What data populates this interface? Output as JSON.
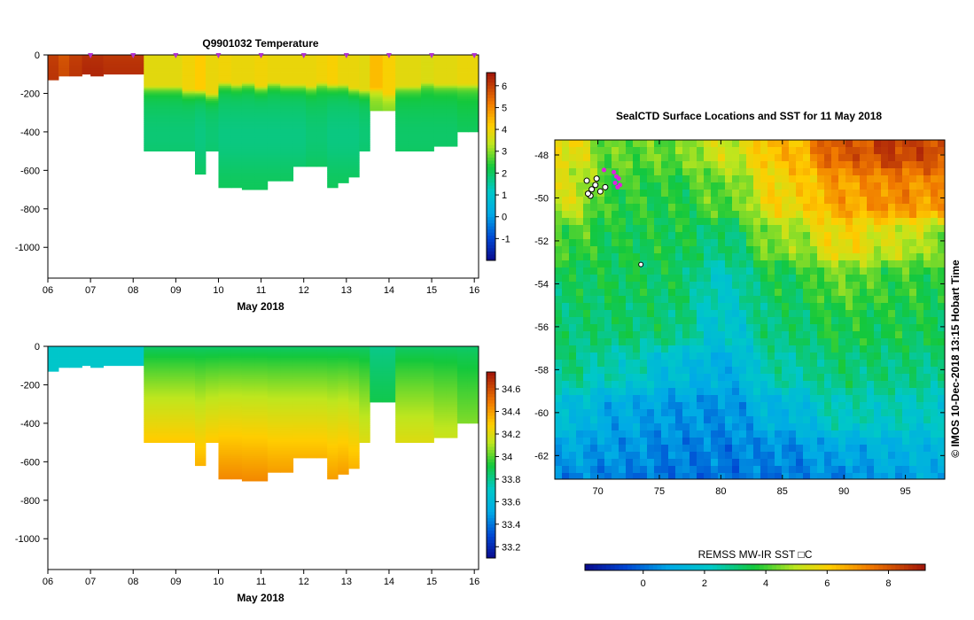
{
  "chart_data": [
    {
      "type": "heatmap",
      "title": "Q9901032  Temperature",
      "xlabel": "May 2018",
      "ylabel": "",
      "x_tick_labels": [
        "06",
        "07",
        "08",
        "09",
        "10",
        "11",
        "12",
        "13",
        "14",
        "15",
        "16"
      ],
      "x_tick_values": [
        6,
        7,
        8,
        9,
        10,
        11,
        12,
        13,
        14,
        15,
        16
      ],
      "xlim": [
        6,
        16.1
      ],
      "y_tick_labels": [
        "0",
        "-200",
        "-400",
        "-600",
        "-800",
        "-1000"
      ],
      "y_tick_values": [
        0,
        -200,
        -400,
        -600,
        -800,
        -1000
      ],
      "ylim": [
        -1160,
        0
      ],
      "colorbar": {
        "ticks": [
          "6",
          "5",
          "4",
          "3",
          "2",
          "1",
          "0",
          "-1"
        ],
        "tick_values": [
          6,
          5,
          4,
          3,
          2,
          1,
          0,
          -1
        ],
        "range": [
          -2.0,
          6.6
        ]
      },
      "profile_times": [
        6.0,
        6.25,
        6.5,
        6.8,
        7.0,
        7.3,
        8.25,
        8.55,
        8.85,
        9.15,
        9.45,
        9.7,
        10.0,
        10.3,
        10.55,
        10.85,
        11.15,
        11.45,
        11.75,
        12.05,
        12.3,
        12.55,
        12.8,
        13.05,
        13.3,
        13.55,
        13.85,
        14.15,
        14.45,
        14.75,
        15.05,
        15.35,
        15.6,
        15.85
      ],
      "profile_max_depths": [
        130,
        110,
        110,
        100,
        110,
        100,
        500,
        500,
        500,
        500,
        620,
        500,
        690,
        690,
        700,
        700,
        655,
        655,
        580,
        580,
        580,
        690,
        665,
        635,
        500,
        290,
        290,
        500,
        500,
        500,
        475,
        475,
        400,
        400
      ],
      "profile_mixed_layer_depths": [
        0,
        0,
        0,
        0,
        0,
        0,
        160,
        160,
        160,
        180,
        180,
        200,
        140,
        150,
        140,
        160,
        140,
        150,
        150,
        160,
        140,
        150,
        150,
        170,
        180,
        170,
        200,
        160,
        160,
        140,
        150,
        150,
        150,
        150
      ],
      "profile_surface_temps": [
        6.0,
        5.7,
        6.0,
        6.2,
        6.2,
        6.1,
        3.8,
        3.8,
        3.8,
        4.0,
        4.2,
        3.9,
        4.0,
        3.9,
        3.9,
        4.0,
        3.9,
        3.9,
        3.9,
        3.9,
        4.0,
        4.1,
        3.9,
        3.9,
        3.8,
        4.4,
        4.1,
        3.8,
        3.8,
        3.7,
        3.8,
        3.8,
        3.9,
        3.9
      ],
      "profile_deep_temps": [
        6.0,
        5.7,
        6.0,
        6.2,
        6.2,
        6.1,
        2.0,
        2.0,
        2.0,
        2.0,
        1.9,
        2.0,
        1.9,
        1.9,
        1.9,
        1.9,
        1.9,
        1.9,
        1.9,
        2.0,
        2.0,
        1.9,
        1.9,
        1.9,
        2.0,
        2.9,
        3.0,
        2.1,
        2.1,
        2.1,
        2.1,
        2.1,
        2.2,
        2.2
      ],
      "surface_markers": [
        7.0,
        8.0,
        9.0,
        10.0,
        11.0,
        12.0,
        13.0,
        14.0,
        15.0,
        16.0
      ]
    },
    {
      "type": "heatmap",
      "title": "",
      "xlabel": "May 2018",
      "ylabel": "",
      "x_tick_labels": [
        "06",
        "07",
        "08",
        "09",
        "10",
        "11",
        "12",
        "13",
        "14",
        "15",
        "16"
      ],
      "x_tick_values": [
        6,
        7,
        8,
        9,
        10,
        11,
        12,
        13,
        14,
        15,
        16
      ],
      "xlim": [
        6,
        16.1
      ],
      "y_tick_labels": [
        "0",
        "-200",
        "-400",
        "-600",
        "-800",
        "-1000"
      ],
      "y_tick_values": [
        0,
        -200,
        -400,
        -600,
        -800,
        -1000
      ],
      "ylim": [
        -1160,
        0
      ],
      "colorbar": {
        "ticks": [
          "34.6",
          "34.4",
          "34.2",
          "34",
          "33.8",
          "33.6",
          "33.4",
          "33.2"
        ],
        "tick_values": [
          34.6,
          34.4,
          34.2,
          34.0,
          33.8,
          33.6,
          33.4,
          33.2
        ],
        "range": [
          33.1,
          34.75
        ]
      },
      "profile_times": [
        6.0,
        6.25,
        6.5,
        6.8,
        7.0,
        7.3,
        8.25,
        8.55,
        8.85,
        9.15,
        9.45,
        9.7,
        10.0,
        10.3,
        10.55,
        10.85,
        11.15,
        11.45,
        11.75,
        12.05,
        12.3,
        12.55,
        12.8,
        13.05,
        13.3,
        13.55,
        13.85,
        14.15,
        14.45,
        14.75,
        15.05,
        15.35,
        15.6,
        15.85
      ],
      "profile_max_depths": [
        130,
        110,
        110,
        100,
        110,
        100,
        500,
        500,
        500,
        500,
        620,
        500,
        690,
        690,
        700,
        700,
        655,
        655,
        580,
        580,
        580,
        690,
        665,
        635,
        500,
        290,
        290,
        500,
        500,
        500,
        475,
        475,
        400,
        400
      ],
      "profile_surface_salinity": [
        33.7,
        33.7,
        33.7,
        33.7,
        33.7,
        33.7,
        33.85,
        33.85,
        33.85,
        33.85,
        33.85,
        33.85,
        33.85,
        33.85,
        33.85,
        33.85,
        33.85,
        33.85,
        33.85,
        33.85,
        33.85,
        33.85,
        33.85,
        33.85,
        33.85,
        33.8,
        33.8,
        33.85,
        33.85,
        33.85,
        33.85,
        33.85,
        33.85,
        33.85
      ],
      "profile_deep_salinity": [
        33.7,
        33.7,
        33.7,
        33.7,
        33.7,
        33.7,
        34.3,
        34.3,
        34.3,
        34.3,
        34.35,
        34.3,
        34.45,
        34.45,
        34.45,
        34.45,
        34.4,
        34.4,
        34.35,
        34.35,
        34.35,
        34.4,
        34.4,
        34.35,
        34.2,
        33.9,
        33.9,
        34.2,
        34.2,
        34.2,
        34.15,
        34.15,
        34.05,
        34.05
      ]
    },
    {
      "type": "heatmap",
      "title": "SealCTD Surface Locations and SST for 11 May 2018",
      "xlabel": "",
      "ylabel": "",
      "x_tick_labels": [
        "70",
        "75",
        "80",
        "85",
        "90",
        "95"
      ],
      "x_tick_values": [
        70,
        75,
        80,
        85,
        90,
        95
      ],
      "xlim": [
        66.5,
        98.2
      ],
      "y_tick_labels": [
        "-48",
        "-50",
        "-52",
        "-54",
        "-56",
        "-58",
        "-60",
        "-62"
      ],
      "y_tick_values": [
        -48,
        -50,
        -52,
        -54,
        -56,
        -58,
        -60,
        -62
      ],
      "ylim": [
        -63.1,
        -47.3
      ],
      "colorbar": {
        "label": "REMSS MW-IR SST □C",
        "ticks": [
          "0",
          "2",
          "4",
          "6",
          "8"
        ],
        "tick_values": [
          0,
          2,
          4,
          6,
          8
        ],
        "range": [
          -1.9,
          9.2
        ],
        "orientation": "horizontal"
      },
      "sst_anchor_points": [
        {
          "lon": 67,
          "lat": -47.5,
          "sst": 5.7
        },
        {
          "lon": 72,
          "lat": -47.5,
          "sst": 4.2
        },
        {
          "lon": 76,
          "lat": -47.5,
          "sst": 4.3
        },
        {
          "lon": 80,
          "lat": -47.5,
          "sst": 5.2
        },
        {
          "lon": 85,
          "lat": -47.5,
          "sst": 6.4
        },
        {
          "lon": 90,
          "lat": -47.5,
          "sst": 8.0
        },
        {
          "lon": 94,
          "lat": -47.5,
          "sst": 8.5
        },
        {
          "lon": 98,
          "lat": -47.5,
          "sst": 8.3
        },
        {
          "lon": 67,
          "lat": -50,
          "sst": 5.3
        },
        {
          "lon": 72,
          "lat": -50,
          "sst": 3.8
        },
        {
          "lon": 76,
          "lat": -50,
          "sst": 3.6
        },
        {
          "lon": 80,
          "lat": -50,
          "sst": 4.2
        },
        {
          "lon": 85,
          "lat": -50,
          "sst": 5.9
        },
        {
          "lon": 90,
          "lat": -50,
          "sst": 6.8
        },
        {
          "lon": 94,
          "lat": -50,
          "sst": 7.2
        },
        {
          "lon": 98,
          "lat": -50,
          "sst": 7.0
        },
        {
          "lon": 67,
          "lat": -52,
          "sst": 4.0
        },
        {
          "lon": 72,
          "lat": -52,
          "sst": 3.5
        },
        {
          "lon": 76,
          "lat": -52,
          "sst": 3.5
        },
        {
          "lon": 80,
          "lat": -52,
          "sst": 3.0
        },
        {
          "lon": 85,
          "lat": -52,
          "sst": 4.6
        },
        {
          "lon": 90,
          "lat": -52,
          "sst": 5.8
        },
        {
          "lon": 94,
          "lat": -52,
          "sst": 5.2
        },
        {
          "lon": 98,
          "lat": -52,
          "sst": 4.6
        },
        {
          "lon": 67,
          "lat": -54,
          "sst": 3.3
        },
        {
          "lon": 72,
          "lat": -54,
          "sst": 3.4
        },
        {
          "lon": 76,
          "lat": -54,
          "sst": 3.3
        },
        {
          "lon": 80,
          "lat": -54,
          "sst": 2.2
        },
        {
          "lon": 85,
          "lat": -54,
          "sst": 3.4
        },
        {
          "lon": 90,
          "lat": -54,
          "sst": 4.2
        },
        {
          "lon": 94,
          "lat": -54,
          "sst": 3.8
        },
        {
          "lon": 98,
          "lat": -54,
          "sst": 3.6
        },
        {
          "lon": 67,
          "lat": -56,
          "sst": 3.1
        },
        {
          "lon": 72,
          "lat": -56,
          "sst": 3.2
        },
        {
          "lon": 76,
          "lat": -56,
          "sst": 3.1
        },
        {
          "lon": 80,
          "lat": -56,
          "sst": 1.9
        },
        {
          "lon": 85,
          "lat": -56,
          "sst": 3.1
        },
        {
          "lon": 90,
          "lat": -56,
          "sst": 3.6
        },
        {
          "lon": 94,
          "lat": -56,
          "sst": 3.5
        },
        {
          "lon": 98,
          "lat": -56,
          "sst": 3.4
        },
        {
          "lon": 67,
          "lat": -58,
          "sst": 3.0
        },
        {
          "lon": 72,
          "lat": -58,
          "sst": 2.4
        },
        {
          "lon": 76,
          "lat": -58,
          "sst": 1.6
        },
        {
          "lon": 80,
          "lat": -58,
          "sst": 1.1
        },
        {
          "lon": 85,
          "lat": -58,
          "sst": 2.6
        },
        {
          "lon": 90,
          "lat": -58,
          "sst": 3.1
        },
        {
          "lon": 94,
          "lat": -58,
          "sst": 3.0
        },
        {
          "lon": 98,
          "lat": -58,
          "sst": 2.9
        },
        {
          "lon": 67,
          "lat": -60,
          "sst": 1.6
        },
        {
          "lon": 72,
          "lat": -60,
          "sst": 0.9
        },
        {
          "lon": 76,
          "lat": -60,
          "sst": 0.6
        },
        {
          "lon": 80,
          "lat": -60,
          "sst": 0.5
        },
        {
          "lon": 85,
          "lat": -60,
          "sst": 1.3
        },
        {
          "lon": 90,
          "lat": -60,
          "sst": 2.4
        },
        {
          "lon": 94,
          "lat": -60,
          "sst": 2.3
        },
        {
          "lon": 98,
          "lat": -60,
          "sst": 2.1
        },
        {
          "lon": 67,
          "lat": -62,
          "sst": 0.9
        },
        {
          "lon": 72,
          "lat": -62,
          "sst": 0.6
        },
        {
          "lon": 76,
          "lat": -62,
          "sst": 0.3
        },
        {
          "lon": 80,
          "lat": -62,
          "sst": 0.2
        },
        {
          "lon": 85,
          "lat": -62,
          "sst": 0.4
        },
        {
          "lon": 90,
          "lat": -62,
          "sst": 0.9
        },
        {
          "lon": 94,
          "lat": -62,
          "sst": 1.2
        },
        {
          "lon": 98,
          "lat": -62,
          "sst": 1.4
        },
        {
          "lon": 67,
          "lat": -63,
          "sst": 0.3
        },
        {
          "lon": 72,
          "lat": -63,
          "sst": 0.1
        },
        {
          "lon": 76,
          "lat": -63,
          "sst": 0.0
        },
        {
          "lon": 80,
          "lat": -63,
          "sst": 0.0
        },
        {
          "lon": 85,
          "lat": -63,
          "sst": 0.1
        },
        {
          "lon": 90,
          "lat": -63,
          "sst": 0.3
        },
        {
          "lon": 94,
          "lat": -63,
          "sst": 0.7
        },
        {
          "lon": 98,
          "lat": -63,
          "sst": 0.9
        }
      ],
      "seal_locations": [
        {
          "lon": 69.5,
          "lat": -49.6
        },
        {
          "lon": 69.8,
          "lat": -49.4
        },
        {
          "lon": 69.1,
          "lat": -49.2
        },
        {
          "lon": 70.2,
          "lat": -49.7
        },
        {
          "lon": 69.4,
          "lat": -49.9
        },
        {
          "lon": 70.6,
          "lat": -49.5
        },
        {
          "lon": 69.9,
          "lat": -49.1
        },
        {
          "lon": 69.2,
          "lat": -49.8
        }
      ],
      "recent_locations": [
        {
          "lon": 71.3,
          "lat": -48.8
        },
        {
          "lon": 71.5,
          "lat": -49.0
        },
        {
          "lon": 71.7,
          "lat": -49.1
        },
        {
          "lon": 71.4,
          "lat": -49.3
        },
        {
          "lon": 71.8,
          "lat": -49.4
        },
        {
          "lon": 71.6,
          "lat": -49.5
        },
        {
          "lon": 70.5,
          "lat": -48.7
        }
      ],
      "other_locations": [
        {
          "lon": 73.5,
          "lat": -53.1
        }
      ],
      "credit": "©  IMOS 10-Dec-2018 13:15 Hobart Time"
    }
  ]
}
